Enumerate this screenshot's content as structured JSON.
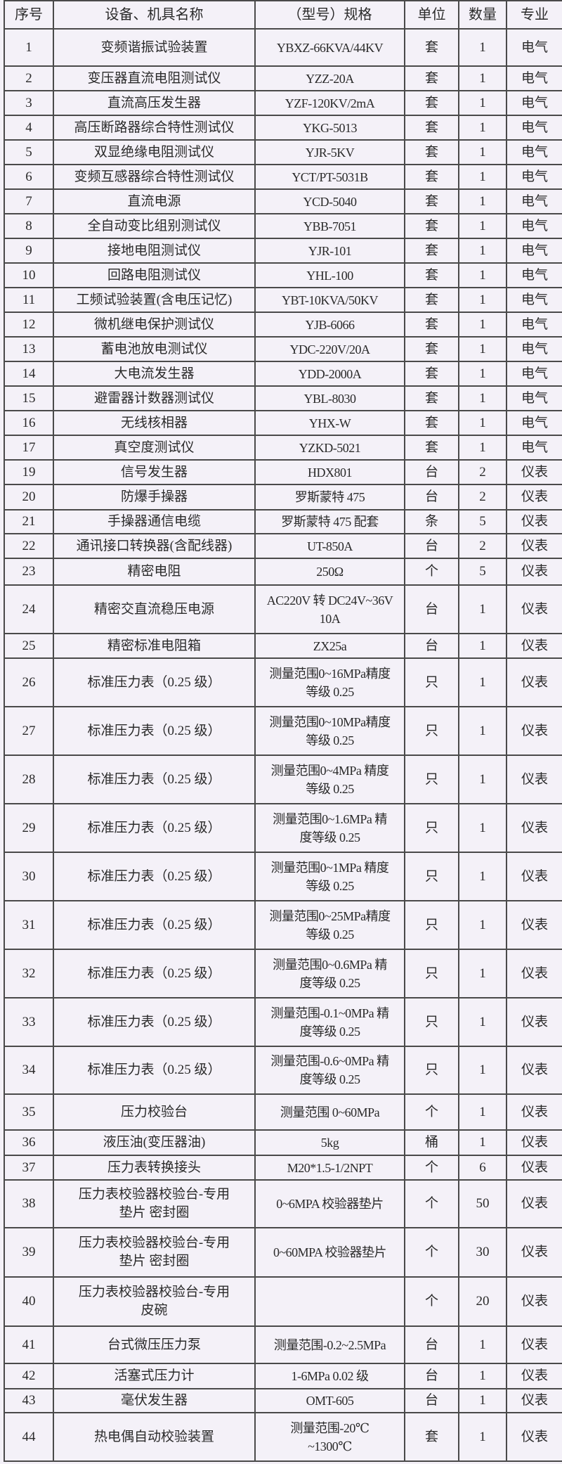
{
  "header": {
    "no": "序号",
    "name": "设备、机具名称",
    "spec": "（型号）规格",
    "unit": "单位",
    "qty": "数量",
    "major": "专业"
  },
  "rows": [
    {
      "no": "1",
      "name": "变频谐振试验装置",
      "spec": "YBXZ-66KVA/44KV",
      "unit": "套",
      "qty": "1",
      "major": "电气"
    },
    {
      "no": "2",
      "name": "变压器直流电阻测试仪",
      "spec": "YZZ-20A",
      "unit": "套",
      "qty": "1",
      "major": "电气"
    },
    {
      "no": "3",
      "name": "直流高压发生器",
      "spec": "YZF-120KV/2mA",
      "unit": "套",
      "qty": "1",
      "major": "电气"
    },
    {
      "no": "4",
      "name": "高压断路器综合特性测试仪",
      "spec": "YKG-5013",
      "unit": "套",
      "qty": "1",
      "major": "电气"
    },
    {
      "no": "5",
      "name": "双显绝缘电阻测试仪",
      "spec": "YJR-5KV",
      "unit": "套",
      "qty": "1",
      "major": "电气"
    },
    {
      "no": "6",
      "name": "变频互感器综合特性测试仪",
      "spec": "YCT/PT-5031B",
      "unit": "套",
      "qty": "1",
      "major": "电气"
    },
    {
      "no": "7",
      "name": "直流电源",
      "spec": "YCD-5040",
      "unit": "套",
      "qty": "1",
      "major": "电气"
    },
    {
      "no": "8",
      "name": "全自动变比组别测试仪",
      "spec": "YBB-7051",
      "unit": "套",
      "qty": "1",
      "major": "电气"
    },
    {
      "no": "9",
      "name": "接地电阻测试仪",
      "spec": "YJR-101",
      "unit": "套",
      "qty": "1",
      "major": "电气"
    },
    {
      "no": "10",
      "name": "回路电阻测试仪",
      "spec": "YHL-100",
      "unit": "套",
      "qty": "1",
      "major": "电气"
    },
    {
      "no": "11",
      "name": "工频试验装置(含电压记忆)",
      "spec": "YBT-10KVA/50KV",
      "unit": "套",
      "qty": "1",
      "major": "电气"
    },
    {
      "no": "12",
      "name": "微机继电保护测试仪",
      "spec": "YJB-6066",
      "unit": "套",
      "qty": "1",
      "major": "电气"
    },
    {
      "no": "13",
      "name": "蓄电池放电测试仪",
      "spec": "YDC-220V/20A",
      "unit": "套",
      "qty": "1",
      "major": "电气"
    },
    {
      "no": "14",
      "name": "大电流发生器",
      "spec": "YDD-2000A",
      "unit": "套",
      "qty": "1",
      "major": "电气"
    },
    {
      "no": "15",
      "name": "避雷器计数器测试仪",
      "spec": "YBL-8030",
      "unit": "套",
      "qty": "1",
      "major": "电气"
    },
    {
      "no": "16",
      "name": "无线核相器",
      "spec": "YHX-W",
      "unit": "套",
      "qty": "1",
      "major": "电气"
    },
    {
      "no": "17",
      "name": "真空度测试仪",
      "spec": "YZKD-5021",
      "unit": "套",
      "qty": "1",
      "major": "电气"
    },
    {
      "no": "19",
      "name": "信号发生器",
      "spec": "HDX801",
      "unit": "台",
      "qty": "2",
      "major": "仪表"
    },
    {
      "no": "20",
      "name": "防爆手操器",
      "spec": "罗斯蒙特 475",
      "unit": "台",
      "qty": "2",
      "major": "仪表"
    },
    {
      "no": "21",
      "name": "手操器通信电缆",
      "spec": "罗斯蒙特 475 配套",
      "unit": "条",
      "qty": "5",
      "major": "仪表"
    },
    {
      "no": "22",
      "name": "通讯接口转换器(含配线器)",
      "spec": "UT-850A",
      "unit": "台",
      "qty": "2",
      "major": "仪表"
    },
    {
      "no": "23",
      "name": "精密电阻",
      "spec": "250Ω",
      "unit": "个",
      "qty": "5",
      "major": "仪表"
    },
    {
      "no": "24",
      "name": "精密交直流稳压电源",
      "spec": "AC220V 转 DC24V~36V\n10A",
      "unit": "台",
      "qty": "1",
      "major": "仪表"
    },
    {
      "no": "25",
      "name": "精密标准电阻箱",
      "spec": "ZX25a",
      "unit": "台",
      "qty": "1",
      "major": "仪表"
    },
    {
      "no": "26",
      "name": "标准压力表（0.25 级）",
      "spec": "测量范围0~16MPa精度\n等级 0.25",
      "unit": "只",
      "qty": "1",
      "major": "仪表"
    },
    {
      "no": "27",
      "name": "标准压力表（0.25 级）",
      "spec": "测量范围0~10MPa精度\n等级 0.25",
      "unit": "只",
      "qty": "1",
      "major": "仪表"
    },
    {
      "no": "28",
      "name": "标准压力表（0.25 级）",
      "spec": "测量范围0~4MPa 精度\n等级 0.25",
      "unit": "只",
      "qty": "1",
      "major": "仪表"
    },
    {
      "no": "29",
      "name": "标准压力表（0.25 级）",
      "spec": "测量范围0~1.6MPa 精\n度等级 0.25",
      "unit": "只",
      "qty": "1",
      "major": "仪表"
    },
    {
      "no": "30",
      "name": "标准压力表（0.25 级）",
      "spec": "测量范围0~1MPa 精度\n等级 0.25",
      "unit": "只",
      "qty": "1",
      "major": "仪表"
    },
    {
      "no": "31",
      "name": "标准压力表（0.25 级）",
      "spec": "测量范围0~25MPa精度\n等级 0.25",
      "unit": "只",
      "qty": "1",
      "major": "仪表"
    },
    {
      "no": "32",
      "name": "标准压力表（0.25 级）",
      "spec": "测量范围0~0.6MPa 精\n度等级 0.25",
      "unit": "只",
      "qty": "1",
      "major": "仪表"
    },
    {
      "no": "33",
      "name": "标准压力表（0.25 级）",
      "spec": "测量范围-0.1~0MPa 精\n度等级 0.25",
      "unit": "只",
      "qty": "1",
      "major": "仪表"
    },
    {
      "no": "34",
      "name": "标准压力表（0.25 级）",
      "spec": "测量范围-0.6~0MPa 精\n度等级 0.25",
      "unit": "只",
      "qty": "1",
      "major": "仪表"
    },
    {
      "no": "35",
      "name": "压力校验台",
      "spec": "测量范围 0~60MPa",
      "unit": "个",
      "qty": "1",
      "major": "仪表"
    },
    {
      "no": "36",
      "name": "液压油(变压器油)",
      "spec": "5kg",
      "unit": "桶",
      "qty": "1",
      "major": "仪表"
    },
    {
      "no": "37",
      "name": "压力表转换接头",
      "spec": "M20*1.5-1/2NPT",
      "unit": "个",
      "qty": "6",
      "major": "仪表"
    },
    {
      "no": "38",
      "name": "压力表校验器校验台-专用\n垫片 密封圈",
      "spec": "0~6MPA 校验器垫片",
      "unit": "个",
      "qty": "50",
      "major": "仪表"
    },
    {
      "no": "39",
      "name": "压力表校验器校验台-专用\n垫片 密封圈",
      "spec": "0~60MPA 校验器垫片",
      "unit": "个",
      "qty": "30",
      "major": "仪表"
    },
    {
      "no": "40",
      "name": "压力表校验器校验台-专用\n皮碗",
      "spec": "",
      "unit": "个",
      "qty": "20",
      "major": "仪表"
    },
    {
      "no": "41",
      "name": "台式微压压力泵",
      "spec": "测量范围-0.2~2.5MPa",
      "unit": "台",
      "qty": "1",
      "major": "仪表"
    },
    {
      "no": "42",
      "name": "活塞式压力计",
      "spec": "1-6MPa 0.02 级",
      "unit": "台",
      "qty": "1",
      "major": "仪表"
    },
    {
      "no": "43",
      "name": "毫伏发生器",
      "spec": "OMT-605",
      "unit": "台",
      "qty": "1",
      "major": "仪表"
    },
    {
      "no": "44",
      "name": "热电偶自动校验装置",
      "spec": "测量范围-20℃\n~1300℃",
      "unit": "套",
      "qty": "1",
      "major": "仪表"
    }
  ]
}
